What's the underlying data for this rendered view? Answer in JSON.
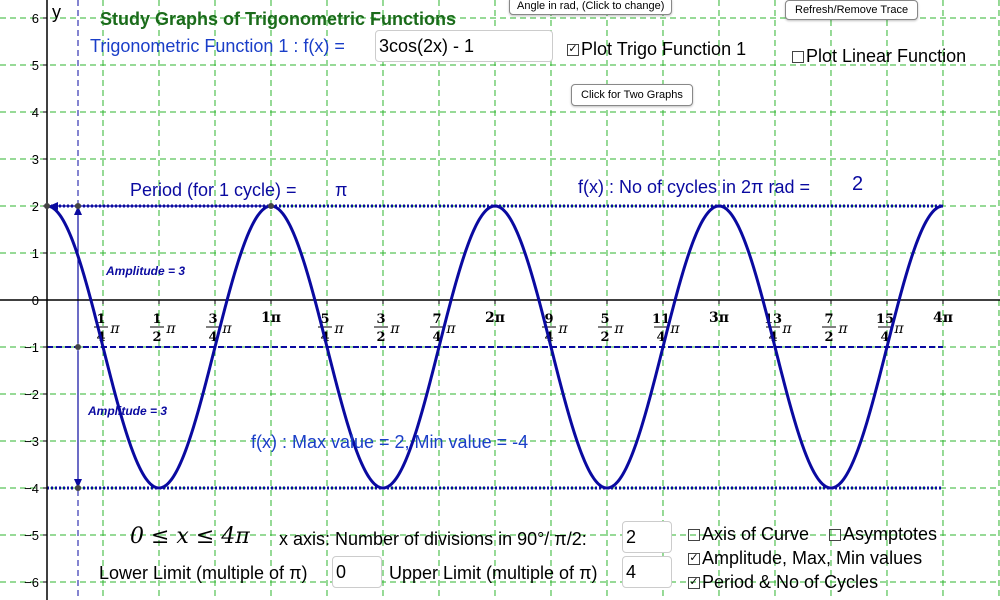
{
  "title": "Study Graphs of Trigonometric Functions",
  "function1": {
    "label": "Trigonometric Function 1 : f(x) =",
    "value": "3cos(2x) - 1"
  },
  "buttons": {
    "angle": "Angle in rad, (Click to change)",
    "refresh": "Refresh/Remove Trace",
    "two_graphs": "Click for Two Graphs"
  },
  "checkboxes": {
    "plot_trigo": {
      "label": "Plot Trigo Function 1",
      "checked": true
    },
    "plot_linear": {
      "label": "Plot Linear Function",
      "checked": false
    },
    "axis_of_curve": {
      "label": "Axis of Curve",
      "checked": false
    },
    "asymptotes": {
      "label": "Asymptotes",
      "checked": false
    },
    "amplitude_max_min": {
      "label": "Amplitude, Max, Min values",
      "checked": true
    },
    "period_cycles": {
      "label": "Period & No of Cycles",
      "checked": true
    }
  },
  "period": {
    "label": "Period (for 1 cycle) =",
    "value": "π"
  },
  "cycles": {
    "label": "f(x) : No of  cycles in 2π rad =",
    "value": "2"
  },
  "amplitude_label": "Amplitude = 3",
  "maxmin_text": "f(x) : Max value = 2, Min value = -4",
  "domain_text": "0 ≤ x ≤ 4π",
  "divisions": {
    "label": "x axis: Number of divisions in 90°/ π/2:",
    "value": "2"
  },
  "lower_limit": {
    "label": "Lower Limit (multiple of π)",
    "value": "0"
  },
  "upper_limit": {
    "label": "Upper Limit (multiple of π)",
    "value": "4"
  },
  "chart_data": {
    "type": "line",
    "function": "3cos(2x) - 1",
    "x_range": [
      0,
      12.566
    ],
    "y_range": [
      -6,
      6
    ],
    "y_axis_label": "y",
    "y_ticks": [
      "6",
      "5",
      "4",
      "3",
      "2",
      "1",
      "0",
      "−1",
      "−2",
      "−3",
      "−4",
      "−5",
      "−6"
    ],
    "x_ticks": [
      {
        "num": "1",
        "den": "4",
        "value": 0.7854
      },
      {
        "num": "1",
        "den": "2",
        "value": 1.5708
      },
      {
        "num": "3",
        "den": "4",
        "value": 2.3562
      },
      {
        "num": "1",
        "den": "",
        "value": 3.1416
      },
      {
        "num": "5",
        "den": "4",
        "value": 3.927
      },
      {
        "num": "3",
        "den": "2",
        "value": 4.7124
      },
      {
        "num": "7",
        "den": "4",
        "value": 5.4978
      },
      {
        "num": "2",
        "den": "",
        "value": 6.2832
      },
      {
        "num": "9",
        "den": "4",
        "value": 7.0686
      },
      {
        "num": "5",
        "den": "2",
        "value": 7.854
      },
      {
        "num": "11",
        "den": "4",
        "value": 8.6394
      },
      {
        "num": "3",
        "den": "",
        "value": 9.4248
      },
      {
        "num": "13",
        "den": "4",
        "value": 10.2102
      },
      {
        "num": "7",
        "den": "2",
        "value": 10.9956
      },
      {
        "num": "15",
        "den": "4",
        "value": 11.781
      },
      {
        "num": "4",
        "den": "",
        "value": 12.5664
      }
    ],
    "max_value": 2,
    "min_value": -4,
    "mid_value": -1,
    "grid": true,
    "colors": {
      "curve": "#0a0aa0",
      "grid": "#2fb52f",
      "axis": "#000000"
    }
  }
}
